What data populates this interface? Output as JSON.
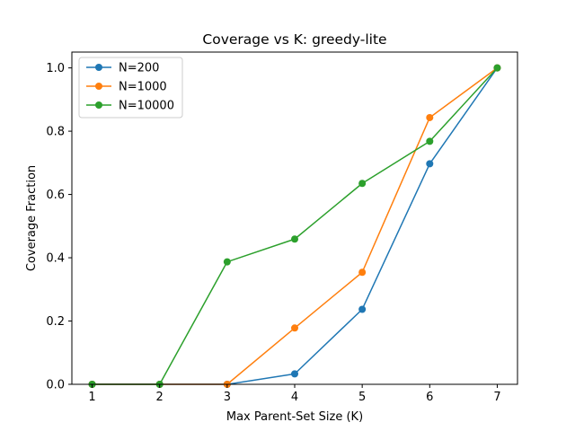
{
  "chart_data": {
    "type": "line",
    "title": "Coverage vs K: greedy-lite",
    "xlabel": "Max Parent-Set Size (K)",
    "ylabel": "Coverage Fraction",
    "x": [
      1,
      2,
      3,
      4,
      5,
      6,
      7
    ],
    "xlim": [
      0.7,
      7.3
    ],
    "ylim": [
      0,
      1.05
    ],
    "xticks": [
      "1",
      "2",
      "3",
      "4",
      "5",
      "6",
      "7"
    ],
    "yticks": [
      "0.0",
      "0.2",
      "0.4",
      "0.6",
      "0.8",
      "1.0"
    ],
    "grid": false,
    "legend_position": "top-left",
    "series": [
      {
        "name": "N=200",
        "color": "#1f77b4",
        "values": [
          0.0,
          0.0,
          0.0,
          0.033,
          0.237,
          0.697,
          1.0
        ]
      },
      {
        "name": "N=1000",
        "color": "#ff7f0e",
        "values": [
          0.0,
          0.0,
          0.0,
          0.178,
          0.354,
          0.843,
          1.0
        ]
      },
      {
        "name": "N=10000",
        "color": "#2ca02c",
        "values": [
          0.0,
          0.0,
          0.387,
          0.459,
          0.635,
          0.768,
          1.0
        ]
      }
    ]
  }
}
